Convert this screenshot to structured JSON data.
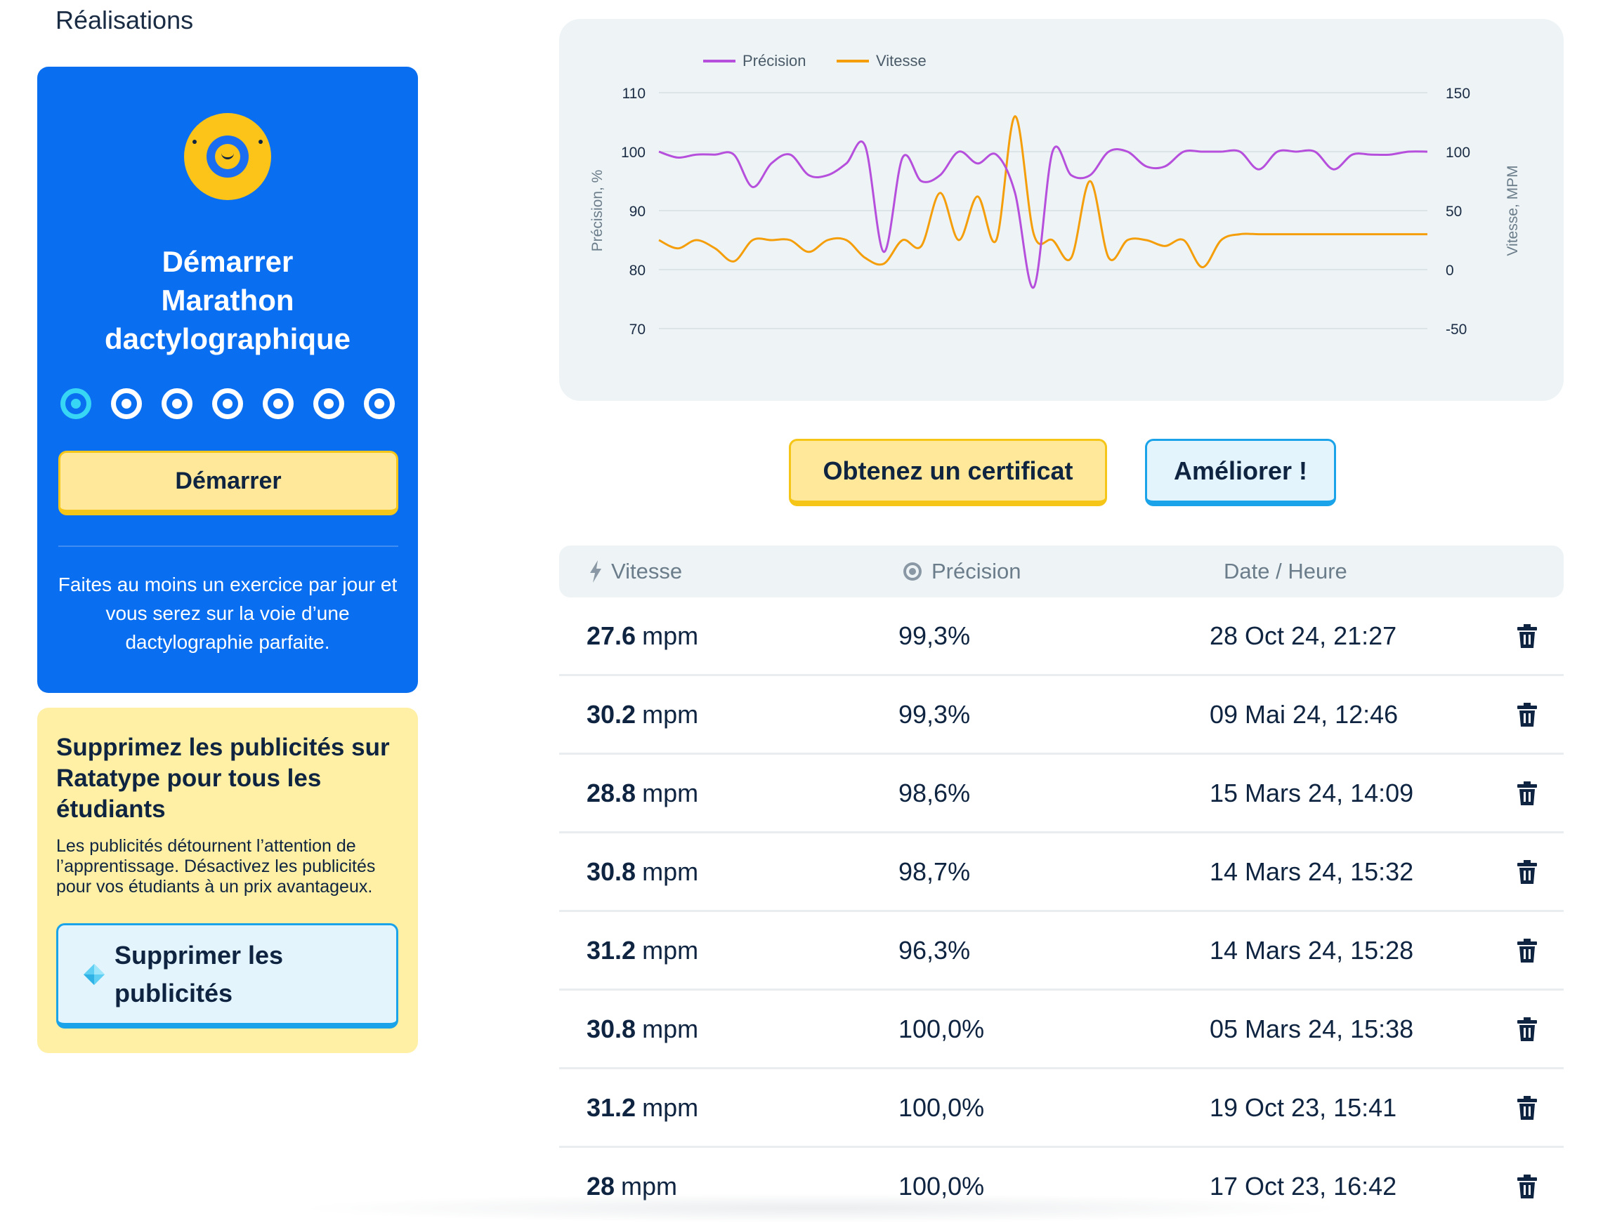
{
  "section_title": "Réalisations",
  "marathon": {
    "title_line1": "Démarrer",
    "title_line2": "Marathon",
    "title_line3": "dactylographique",
    "start_label": "Démarrer",
    "description": "Faites au moins un exercice par jour et vous serez sur la voie d’une dactylographie parfaite.",
    "progress_total": 7,
    "progress_active_index": 0
  },
  "ads": {
    "title": "Supprimez les publicités sur Ratatype pour tous les étudiants",
    "description": "Les publicités détournent l’attention de l’apprentissage. Désactivez les publicités pour vos étudiants à un prix avantageux.",
    "button_label": "Supprimer les publicités",
    "button_icon": "diamond-icon"
  },
  "actions": {
    "certificate_label": "Obtenez un certificat",
    "improve_label": "Améliorer !"
  },
  "table": {
    "headers": {
      "speed": "Vitesse",
      "accuracy": "Précision",
      "datetime": "Date / Heure"
    },
    "rows": [
      {
        "speed": "27.6",
        "unit": "mpm",
        "accuracy": "99,3%",
        "datetime": "28 Oct 24, 21:27"
      },
      {
        "speed": "30.2",
        "unit": "mpm",
        "accuracy": "99,3%",
        "datetime": "09 Mai 24, 12:46"
      },
      {
        "speed": "28.8",
        "unit": "mpm",
        "accuracy": "98,6%",
        "datetime": "15 Mars 24, 14:09"
      },
      {
        "speed": "30.8",
        "unit": "mpm",
        "accuracy": "98,7%",
        "datetime": "14 Mars 24, 15:32"
      },
      {
        "speed": "31.2",
        "unit": "mpm",
        "accuracy": "96,3%",
        "datetime": "14 Mars 24, 15:28"
      },
      {
        "speed": "30.8",
        "unit": "mpm",
        "accuracy": "100,0%",
        "datetime": "05 Mars 24, 15:38"
      },
      {
        "speed": "31.2",
        "unit": "mpm",
        "accuracy": "100,0%",
        "datetime": "19 Oct 23, 15:41"
      },
      {
        "speed": "28",
        "unit": "mpm",
        "accuracy": "100,0%",
        "datetime": "17 Oct 23, 16:42"
      }
    ]
  },
  "colors": {
    "primary_blue": "#0a6ef0",
    "yellow": "#fcc419",
    "precision_line": "#b54fdc",
    "speed_line": "#f59e0b"
  },
  "chart_data": {
    "type": "line",
    "legend_position": "top-left",
    "ylabel_left": "Précision, %",
    "ylabel_right": "Vitesse, MPM",
    "yticks_left": [
      "110",
      "100",
      "90",
      "80",
      "70"
    ],
    "yticks_right": [
      "150",
      "100",
      "50",
      "0",
      "-50"
    ],
    "ylim_left": [
      70,
      110
    ],
    "ylim_right": [
      -50,
      150
    ],
    "grid": true,
    "series": [
      {
        "name": "Précision",
        "axis": "left",
        "color": "#b54fdc",
        "values": [
          100,
          99,
          99.5,
          99.5,
          99.5,
          94,
          98,
          99.5,
          96,
          96,
          98,
          101,
          83,
          99,
          95,
          96,
          100,
          98,
          99.5,
          93,
          77,
          100,
          96,
          96,
          100,
          100,
          97.5,
          97.5,
          100,
          100,
          100,
          100,
          97,
          100,
          100,
          100,
          97,
          99.5,
          99.5,
          99.5,
          100,
          100
        ]
      },
      {
        "name": "Vitesse",
        "axis": "right",
        "color": "#f59e0b",
        "values": [
          25,
          18,
          25,
          18,
          7,
          25,
          25,
          25,
          15,
          25,
          25,
          10,
          5,
          25,
          20,
          65,
          25,
          62,
          25,
          130,
          30,
          25,
          10,
          75,
          10,
          25,
          25,
          20,
          25,
          2,
          25,
          30,
          30,
          30,
          30,
          30,
          30,
          30,
          30,
          30,
          30,
          30
        ]
      }
    ]
  }
}
